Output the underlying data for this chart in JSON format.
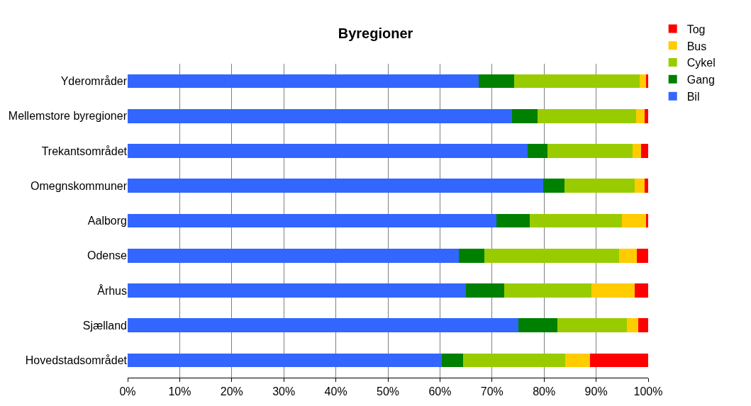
{
  "chart_data": {
    "type": "bar",
    "title": "Byregioner",
    "orientation": "horizontal",
    "stacked": true,
    "categories": [
      "Yderområder",
      "Mellemstore byregioner",
      "Trekantsområdet",
      "Omegnskommuner",
      "Aalborg",
      "Odense",
      "Århus",
      "Sjælland",
      "Hovedstadsområdet"
    ],
    "series": [
      {
        "name": "Bil",
        "color": "#3366ff",
        "values": [
          67.4,
          73.9,
          76.9,
          79.9,
          70.8,
          63.6,
          65.0,
          75.1,
          60.4
        ]
      },
      {
        "name": "Gang",
        "color": "#008000",
        "values": [
          6.9,
          4.9,
          3.7,
          4.0,
          6.5,
          4.9,
          7.3,
          7.4,
          4.1
        ]
      },
      {
        "name": "Cykel",
        "color": "#99cc00",
        "values": [
          24.0,
          18.9,
          16.4,
          13.5,
          17.7,
          25.9,
          16.8,
          13.4,
          19.5
        ]
      },
      {
        "name": "Bus",
        "color": "#ffcc00",
        "values": [
          1.3,
          1.6,
          1.6,
          1.9,
          4.6,
          3.4,
          8.3,
          2.2,
          4.8
        ]
      },
      {
        "name": "Tog",
        "color": "#ff0000",
        "values": [
          0.4,
          0.7,
          1.4,
          0.7,
          0.4,
          2.2,
          2.6,
          1.9,
          11.2
        ]
      }
    ],
    "xlim": [
      0,
      100
    ],
    "xticks": [
      {
        "value": 0,
        "label": "0%"
      },
      {
        "value": 10,
        "label": "10%"
      },
      {
        "value": 20,
        "label": "20%"
      },
      {
        "value": 30,
        "label": "30%"
      },
      {
        "value": 40,
        "label": "40%"
      },
      {
        "value": 50,
        "label": "50%"
      },
      {
        "value": 60,
        "label": "60%"
      },
      {
        "value": 70,
        "label": "70%"
      },
      {
        "value": 80,
        "label": "80%"
      },
      {
        "value": 90,
        "label": "90%"
      },
      {
        "value": 100,
        "label": "100%"
      }
    ],
    "grid": "x",
    "legend": "top right"
  }
}
